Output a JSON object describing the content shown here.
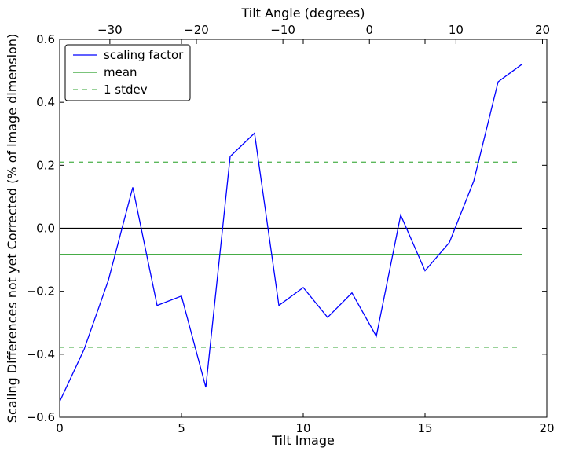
{
  "chart_data": {
    "type": "line",
    "xlabel": "Tilt Image",
    "ylabel": "Scaling Differences not yet Corrected (% of image dimension)",
    "x2label": "Tilt Angle (degrees)",
    "xlim": [
      0,
      20
    ],
    "ylim": [
      -0.6,
      0.6
    ],
    "x2lim": [
      -35.8,
      20.5
    ],
    "x_ticks": [
      0,
      5,
      10,
      15,
      20
    ],
    "y_ticks": [
      -0.6,
      -0.4,
      -0.2,
      0.0,
      0.2,
      0.4,
      0.6
    ],
    "x2_ticks": [
      -30,
      -20,
      -10,
      0,
      10,
      20
    ],
    "x_tick_labels": [
      "0",
      "5",
      "10",
      "15",
      "20"
    ],
    "y_tick_labels": [
      "−0.6",
      "−0.4",
      "−0.2",
      "0.0",
      "0.2",
      "0.4",
      "0.6"
    ],
    "x2_tick_labels": [
      "−30",
      "−20",
      "−10",
      "0",
      "10",
      "20"
    ],
    "grid": false,
    "legend_position": "top-left",
    "series": [
      {
        "name": "scaling factor",
        "color": "#0000ff",
        "style": "solid",
        "x": [
          0,
          1,
          2,
          3,
          4,
          5,
          6,
          7,
          8,
          9,
          10,
          11,
          12,
          13,
          14,
          15,
          16,
          17,
          18,
          19
        ],
        "y": [
          -0.55,
          -0.385,
          -0.165,
          0.13,
          -0.245,
          -0.215,
          -0.505,
          0.228,
          0.302,
          -0.245,
          -0.188,
          -0.283,
          -0.205,
          -0.343,
          0.042,
          -0.135,
          -0.045,
          0.15,
          0.465,
          0.522
        ]
      },
      {
        "name": "mean",
        "color": "#2ca02c",
        "style": "solid",
        "x": [
          0,
          19
        ],
        "y": [
          -0.083,
          -0.083
        ]
      },
      {
        "name": "1 stdev",
        "color": "#5cb85c",
        "style": "dashed",
        "x": [
          0,
          19
        ],
        "y": [
          0.21,
          0.21
        ]
      },
      {
        "name": "",
        "color": "#5cb85c",
        "style": "dashed",
        "x": [
          0,
          19
        ],
        "y": [
          -0.378,
          -0.378
        ]
      },
      {
        "name": "",
        "color": "#000000",
        "style": "solid",
        "x": [
          0,
          19
        ],
        "y": [
          0.0,
          0.0
        ]
      }
    ]
  }
}
